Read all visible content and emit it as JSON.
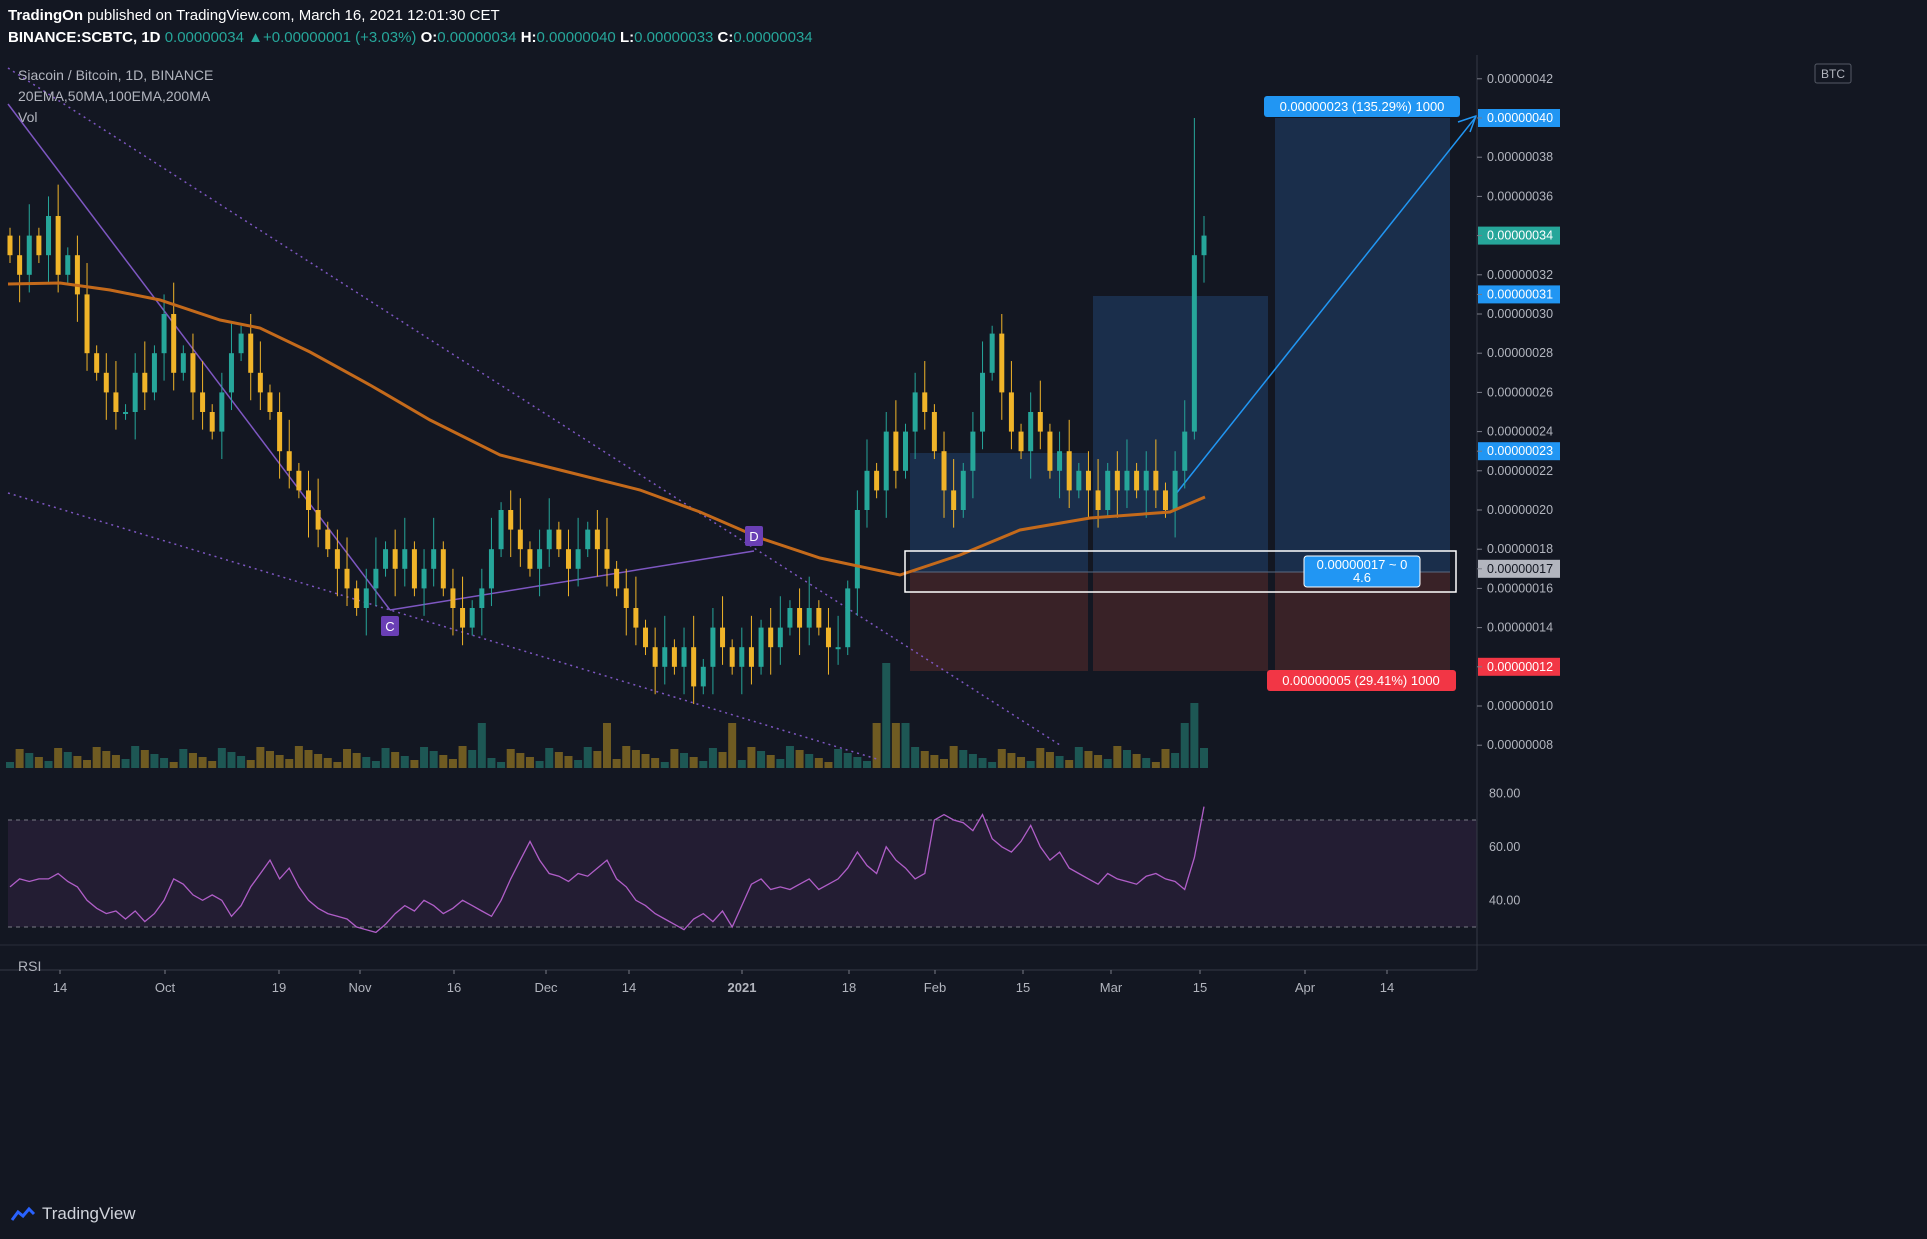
{
  "header": {
    "publisher": "TradingOn",
    "published_text": "published on TradingView.com, March 16, 2021 12:01:30 CET",
    "symbol": "BINANCE:SCBTC, 1D",
    "last": "0.00000034",
    "change": "+0.00000001 (+3.03%)",
    "o_label": "O:",
    "o": "0.00000034",
    "h_label": "H:",
    "h": "0.00000040",
    "l_label": "L:",
    "l": "0.00000033",
    "c_label": "C:",
    "c": "0.00000034"
  },
  "legend": {
    "title": "Siacoin / Bitcoin, 1D, BINANCE",
    "indicators": "20EMA,50MA,100EMA,200MA",
    "vol": "Vol",
    "rsi": "RSI"
  },
  "currency": "BTC",
  "footer_brand": "TradingView",
  "colors": {
    "bg": "#131722",
    "bull": "#26a69a",
    "bear": "#f0b429",
    "ema": "#c46a1b",
    "ma50": "#8d6e4a",
    "rsi": "#b05ec8",
    "target_label": "#2196f3",
    "stop_label": "#f23645",
    "trend": "#7e57c2"
  },
  "chart_data": {
    "type": "candlestick",
    "price_axis": {
      "range": [
        7e-08,
        4.35e-07
      ],
      "ticks": [
        "0.00000042",
        "0.00000040",
        "0.00000038",
        "0.00000036",
        "0.00000034",
        "0.00000032",
        "0.00000031",
        "0.00000030",
        "0.00000028",
        "0.00000026",
        "0.00000024",
        "0.00000023",
        "0.00000022",
        "0.00000020",
        "0.00000018",
        "0.00000017",
        "0.00000016",
        "0.00000014",
        "0.00000012",
        "0.00000010",
        "0.00000008"
      ],
      "highlighted": [
        {
          "value": "0.00000040",
          "kind": "target"
        },
        {
          "value": "0.00000034",
          "kind": "last"
        },
        {
          "value": "0.00000031",
          "kind": "target"
        },
        {
          "value": "0.00000023",
          "kind": "target"
        },
        {
          "value": "0.00000017",
          "kind": "entry"
        },
        {
          "value": "0.00000012",
          "kind": "stop"
        }
      ]
    },
    "time_axis": [
      "14",
      "Oct",
      "19",
      "Nov",
      "16",
      "Dec",
      "14",
      "2021",
      "18",
      "Feb",
      "15",
      "Mar",
      "15",
      "Apr",
      "14"
    ],
    "rsi_axis": [
      "80.00",
      "60.00",
      "40.00"
    ],
    "rsi_bands": [
      70,
      30
    ],
    "annotations": {
      "point_c": "C",
      "point_d": "D",
      "target_label": "0.00000023 (135.29%) 1000",
      "stop_label": "0.00000005 (29.41%) 1000",
      "box_label_1": "0.00000017 ~ 0",
      "box_label_2": "4.6"
    },
    "candle_closes": [
      33,
      32,
      34,
      33,
      35,
      32,
      33,
      31,
      28,
      27,
      26,
      25,
      25,
      27,
      26,
      28,
      30,
      27,
      28,
      26,
      25,
      24,
      26,
      28,
      29,
      27,
      26,
      25,
      23,
      22,
      21,
      20,
      19,
      18,
      17,
      16,
      15,
      16,
      17,
      18,
      17,
      18,
      16,
      17,
      18,
      16,
      15,
      14,
      15,
      16,
      18,
      20,
      19,
      18,
      17,
      18,
      19,
      18,
      17,
      18,
      19,
      18,
      17,
      16,
      15,
      14,
      13,
      12,
      13,
      12,
      13,
      11,
      12,
      14,
      13,
      12,
      13,
      12,
      14,
      13,
      14,
      15,
      14,
      15,
      14,
      13,
      13,
      16,
      20,
      22,
      21,
      24,
      22,
      24,
      26,
      25,
      23,
      21,
      20,
      22,
      24,
      27,
      29,
      26,
      24,
      23,
      25,
      24,
      22,
      23,
      21,
      22,
      21,
      20,
      22,
      21,
      22,
      21,
      22,
      21,
      20,
      22,
      24,
      33,
      34
    ],
    "rsi_values": [
      45,
      48,
      47,
      48,
      48,
      50,
      47,
      45,
      40,
      37,
      35,
      36,
      33,
      36,
      32,
      35,
      40,
      48,
      46,
      42,
      40,
      42,
      40,
      34,
      38,
      45,
      50,
      55,
      48,
      52,
      45,
      40,
      37,
      35,
      34,
      33,
      30,
      29,
      28,
      31,
      35,
      38,
      36,
      40,
      38,
      35,
      37,
      40,
      38,
      36,
      34,
      40,
      48,
      55,
      62,
      55,
      50,
      49,
      47,
      50,
      49,
      52,
      55,
      48,
      45,
      40,
      38,
      35,
      33,
      31,
      29,
      33,
      35,
      32,
      36,
      30,
      38,
      46,
      48,
      44,
      45,
      44,
      46,
      48,
      44,
      46,
      48,
      52,
      58,
      53,
      50,
      60,
      55,
      52,
      48,
      50,
      70,
      72,
      70,
      69,
      66,
      72,
      63,
      60,
      58,
      62,
      68,
      60,
      55,
      58,
      52,
      50,
      48,
      46,
      50,
      48,
      47,
      46,
      49,
      50,
      48,
      47,
      44,
      56,
      75
    ]
  }
}
